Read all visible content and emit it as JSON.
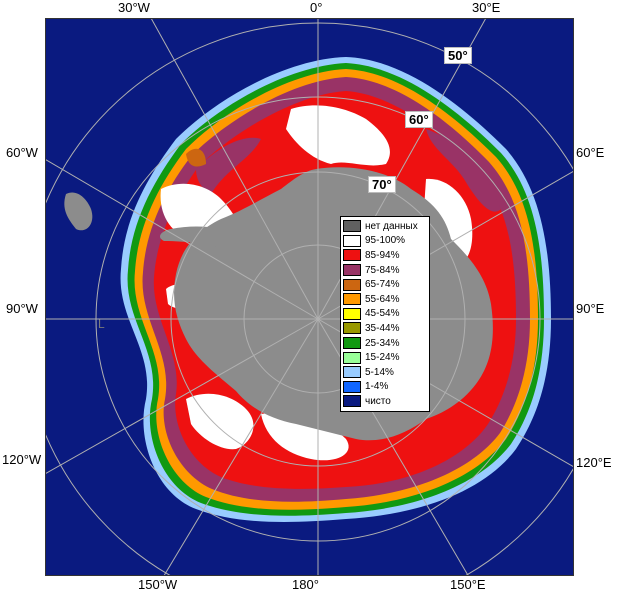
{
  "map": {
    "pole_marker": "L",
    "longitude_labels": {
      "top_30w": "30°W",
      "top_0": "0°",
      "top_30e": "30°E",
      "left_60w": "60°W",
      "right_60e": "60°E",
      "left_90w": "90°W",
      "right_90e": "90°E",
      "left_120w": "120°W",
      "right_120e": "120°E",
      "bottom_150w": "150°W",
      "bottom_180": "180°",
      "bottom_150e": "150°E"
    },
    "latitude_labels": {
      "lat50": "50°",
      "lat60": "60°",
      "lat70": "70°"
    },
    "colors": {
      "open_water": "#0a1a80",
      "no_data": "#8c8c8c",
      "ice_95_100": "#ffffff",
      "ice_85_94": "#ee1111",
      "ice_75_84": "#993366"
    }
  },
  "legend": {
    "items": [
      {
        "label": "нет данных",
        "color": "#606060"
      },
      {
        "label": "95-100%",
        "color": "#ffffff"
      },
      {
        "label": "85-94%",
        "color": "#ee1111"
      },
      {
        "label": "75-84%",
        "color": "#993366"
      },
      {
        "label": "65-74%",
        "color": "#cc6611"
      },
      {
        "label": "55-64%",
        "color": "#ff9900"
      },
      {
        "label": "45-54%",
        "color": "#ffff00"
      },
      {
        "label": "35-44%",
        "color": "#999900"
      },
      {
        "label": "25-34%",
        "color": "#119911"
      },
      {
        "label": "15-24%",
        "color": "#99ff99"
      },
      {
        "label": "5-14%",
        "color": "#99ccff"
      },
      {
        "label": "1-4%",
        "color": "#1166ff"
      },
      {
        "label": "чисто",
        "color": "#0a1a80"
      }
    ]
  }
}
